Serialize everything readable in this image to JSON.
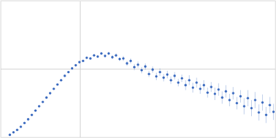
{
  "chart_data": {
    "type": "scatter",
    "color": "#3d6cc0",
    "marker": "circle",
    "grid": true,
    "tick_labels": false,
    "xlim": [
      0,
      6
    ],
    "ylim": [
      0,
      2.2
    ],
    "xticks": [
      1.73
    ],
    "yticks": [
      1.104
    ],
    "x": [
      0.2,
      0.28,
      0.36,
      0.44,
      0.52,
      0.6,
      0.68,
      0.76,
      0.84,
      0.92,
      1.0,
      1.08,
      1.16,
      1.24,
      1.32,
      1.4,
      1.48,
      1.56,
      1.64,
      1.72,
      1.8,
      1.88,
      1.96,
      2.04,
      2.12,
      2.2,
      2.28,
      2.36,
      2.44,
      2.52,
      2.6,
      2.68,
      2.76,
      2.84,
      2.92,
      3.0,
      3.08,
      3.16,
      3.24,
      3.32,
      3.4,
      3.48,
      3.56,
      3.64,
      3.72,
      3.8,
      3.88,
      3.96,
      4.04,
      4.12,
      4.2,
      4.28,
      4.36,
      4.44,
      4.52,
      4.6,
      4.68,
      4.76,
      4.84,
      4.92,
      5.0,
      5.08,
      5.16,
      5.24,
      5.32,
      5.4,
      5.48,
      5.56,
      5.64,
      5.72,
      5.8,
      5.88,
      5.96
    ],
    "values": [
      0.04,
      0.08,
      0.12,
      0.17,
      0.23,
      0.29,
      0.36,
      0.43,
      0.5,
      0.57,
      0.64,
      0.71,
      0.78,
      0.85,
      0.92,
      0.99,
      1.05,
      1.11,
      1.16,
      1.21,
      1.23,
      1.28,
      1.27,
      1.32,
      1.3,
      1.35,
      1.31,
      1.35,
      1.29,
      1.32,
      1.26,
      1.27,
      1.19,
      1.23,
      1.13,
      1.17,
      1.08,
      1.14,
      1.02,
      1.09,
      0.98,
      1.05,
      0.96,
      1.01,
      0.92,
      0.99,
      0.88,
      0.95,
      0.84,
      0.92,
      0.8,
      0.88,
      0.78,
      0.84,
      0.72,
      0.81,
      0.7,
      0.77,
      0.64,
      0.74,
      0.6,
      0.71,
      0.55,
      0.66,
      0.5,
      0.63,
      0.47,
      0.6,
      0.4,
      0.56,
      0.36,
      0.52,
      0.41
    ],
    "errors": [
      0.005,
      0.005,
      0.005,
      0.005,
      0.005,
      0.005,
      0.005,
      0.005,
      0.005,
      0.005,
      0.005,
      0.005,
      0.005,
      0.005,
      0.005,
      0.008,
      0.008,
      0.01,
      0.01,
      0.015,
      0.015,
      0.015,
      0.02,
      0.02,
      0.02,
      0.025,
      0.025,
      0.025,
      0.03,
      0.03,
      0.03,
      0.04,
      0.04,
      0.04,
      0.05,
      0.05,
      0.05,
      0.05,
      0.05,
      0.05,
      0.06,
      0.06,
      0.06,
      0.06,
      0.06,
      0.06,
      0.06,
      0.06,
      0.08,
      0.08,
      0.08,
      0.08,
      0.08,
      0.08,
      0.08,
      0.08,
      0.1,
      0.1,
      0.1,
      0.1,
      0.1,
      0.1,
      0.1,
      0.1,
      0.13,
      0.13,
      0.13,
      0.13,
      0.13,
      0.13,
      0.13,
      0.13,
      0.13
    ]
  }
}
